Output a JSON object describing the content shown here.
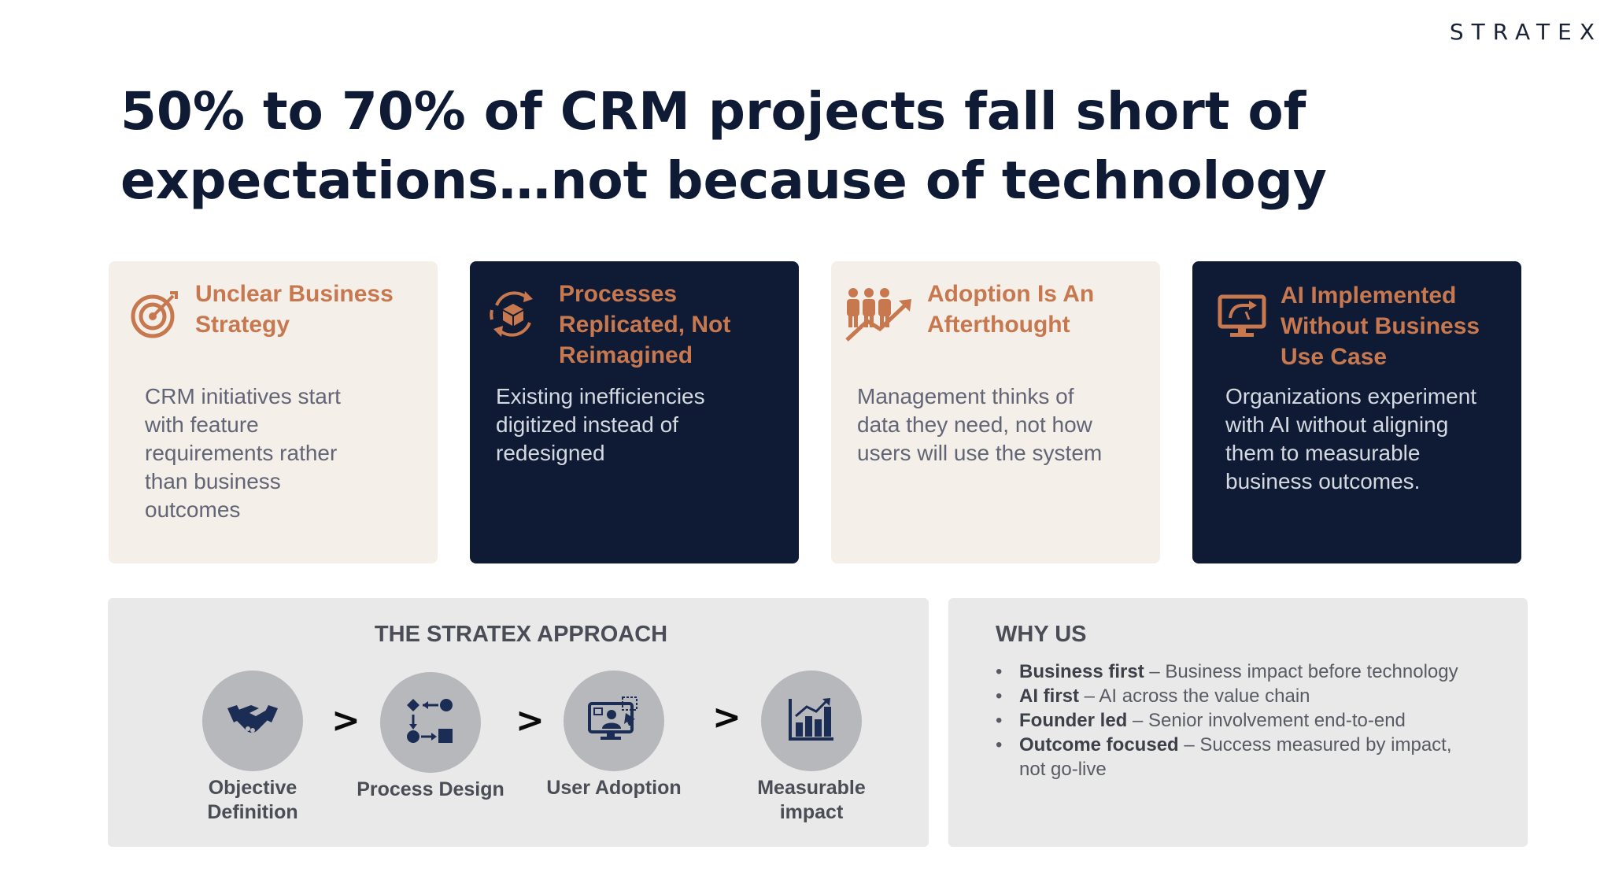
{
  "brand": {
    "logo_text": "STRATEX"
  },
  "title": "50% to 70% of CRM projects fall short of expectations…not because of technology",
  "colors": {
    "navy": "#0f1b35",
    "accent": "#c8784f",
    "card_light": "#f4efe9",
    "panel": "#e9e9ea"
  },
  "cards": [
    {
      "icon": "target-icon",
      "title": "Unclear Business Strategy",
      "body": "CRM initiatives start with feature requirements rather than business outcomes"
    },
    {
      "icon": "box-cycle-icon",
      "title": "Processes Replicated, Not Reimagined",
      "body": "Existing inefficiencies digitized instead of redesigned"
    },
    {
      "icon": "people-growth-icon",
      "title": "Adoption Is An Afterthought",
      "body": "Management thinks of data they need, not how users will use the system"
    },
    {
      "icon": "monitor-ai-icon",
      "title": "AI Implemented Without Business Use Case",
      "body": "Organizations experiment with AI without aligning them to measurable business outcomes."
    }
  ],
  "approach": {
    "title": "THE STRATEX APPROACH",
    "separator": ">",
    "steps": [
      {
        "icon": "handshake-icon",
        "label": "Objective Definition"
      },
      {
        "icon": "process-flow-icon",
        "label": "Process Design"
      },
      {
        "icon": "user-screen-icon",
        "label": "User Adoption"
      },
      {
        "icon": "bar-chart-icon",
        "label": "Measurable impact"
      }
    ]
  },
  "why_us": {
    "title": "WHY US",
    "items": [
      {
        "bold": "Business first",
        "text": " – Business impact before technology"
      },
      {
        "bold": "AI first",
        "text": " – AI across the value chain"
      },
      {
        "bold": "Founder led",
        "text": " – Senior involvement end-to-end"
      },
      {
        "bold": "Outcome focused",
        "text": " – Success measured by impact, not go-live"
      }
    ]
  }
}
